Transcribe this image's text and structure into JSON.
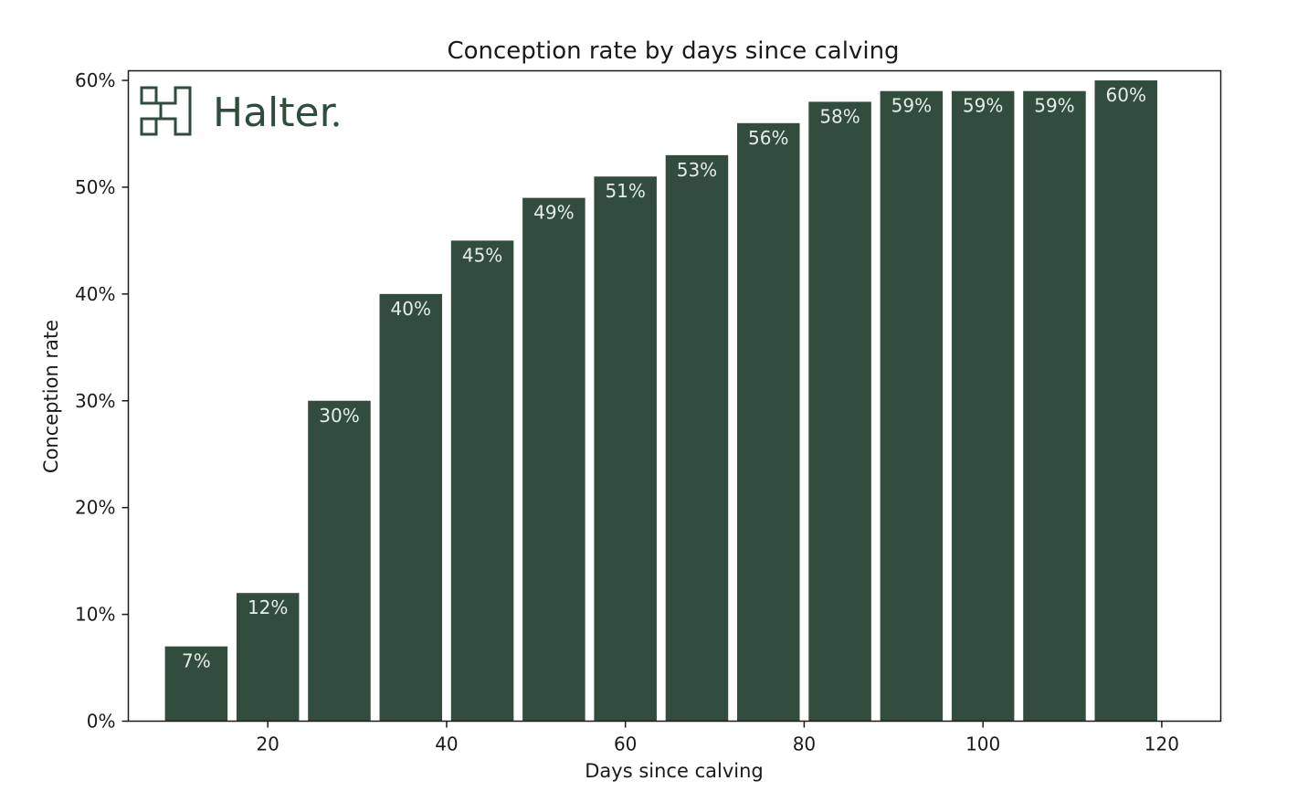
{
  "chart_data": {
    "type": "bar",
    "title": "Conception rate by days since calving",
    "xlabel": "Days since calving",
    "ylabel": "Conception rate",
    "x": [
      12,
      20,
      28,
      36,
      44,
      52,
      60,
      68,
      76,
      84,
      92,
      100,
      108,
      116
    ],
    "values": [
      7,
      12,
      30,
      40,
      45,
      49,
      51,
      53,
      56,
      58,
      59,
      59,
      59,
      60
    ],
    "data_labels": [
      "7%",
      "12%",
      "30%",
      "40%",
      "45%",
      "49%",
      "51%",
      "53%",
      "56%",
      "58%",
      "59%",
      "59%",
      "59%",
      "60%"
    ],
    "bar_width": 7,
    "xlim": [
      4.4,
      126.6
    ],
    "ylim": [
      0,
      60.9
    ],
    "x_ticks": [
      20,
      40,
      60,
      80,
      100,
      120
    ],
    "y_ticks": [
      0,
      10,
      20,
      30,
      40,
      50,
      60
    ],
    "y_tick_labels": [
      "0%",
      "10%",
      "20%",
      "30%",
      "40%",
      "50%",
      "60%"
    ],
    "bar_color": "#324d3e",
    "grid": false
  },
  "logo": {
    "text": "Halter",
    "color": "#2f4d3c",
    "icon": "halter-h-icon"
  }
}
